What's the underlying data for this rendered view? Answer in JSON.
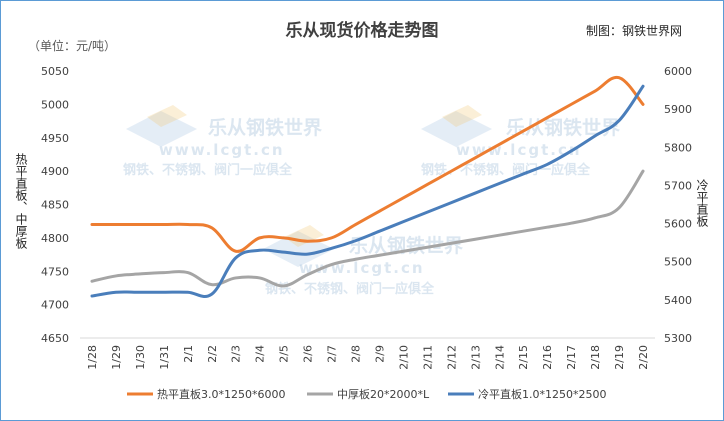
{
  "chart_data": {
    "type": "line",
    "title": "乐从现货价格走势图",
    "credit": "制图：钢铁世界网",
    "unit_label": "（单位：元/吨）",
    "left_axis_label": "热平直板、中厚板",
    "right_axis_label": "冷平直板",
    "watermark": {
      "brand": "乐从钢铁世界",
      "url": "www.lcgt.cn",
      "tagline": "钢铁、不锈钢、阀门一应俱全"
    },
    "categories": [
      "1/28",
      "1/29",
      "1/30",
      "1/31",
      "2/1",
      "2/2",
      "2/3",
      "2/4",
      "2/5",
      "2/6",
      "2/7",
      "2/8",
      "2/9",
      "2/10",
      "2/11",
      "2/12",
      "2/13",
      "2/14",
      "2/15",
      "2/16",
      "2/17",
      "2/18",
      "2/19",
      "2/20"
    ],
    "y_left": {
      "min": 4650,
      "max": 5050,
      "step": 50
    },
    "y_right": {
      "min": 5300,
      "max": 6000,
      "step": 100
    },
    "grid": false,
    "legend_position": "bottom",
    "series": [
      {
        "name": "热平直板3.0*1250*6000",
        "axis": "left",
        "color": "#ed7d31",
        "values": [
          4820,
          4820,
          4820,
          4820,
          4820,
          4815,
          4780,
          4800,
          4800,
          4795,
          4800,
          4820,
          4840,
          4860,
          4880,
          4900,
          4920,
          4940,
          4960,
          4980,
          5000,
          5020,
          5040,
          5000
        ]
      },
      {
        "name": "中厚板20*2000*L",
        "axis": "left",
        "color": "#a5a5a5",
        "values": [
          4735,
          4743,
          4746,
          4748,
          4748,
          4730,
          4740,
          4740,
          4728,
          4745,
          4760,
          4768,
          4774,
          4780,
          4786,
          4792,
          4798,
          4804,
          4810,
          4816,
          4822,
          4830,
          4845,
          4900
        ]
      },
      {
        "name": "冷平直板1.0*1250*2500",
        "axis": "right",
        "color": "#4a7ebb",
        "values": [
          5410,
          5420,
          5420,
          5420,
          5420,
          5415,
          5510,
          5530,
          5525,
          5520,
          5535,
          5555,
          5580,
          5605,
          5630,
          5655,
          5680,
          5705,
          5730,
          5755,
          5790,
          5830,
          5870,
          5960
        ]
      }
    ]
  }
}
